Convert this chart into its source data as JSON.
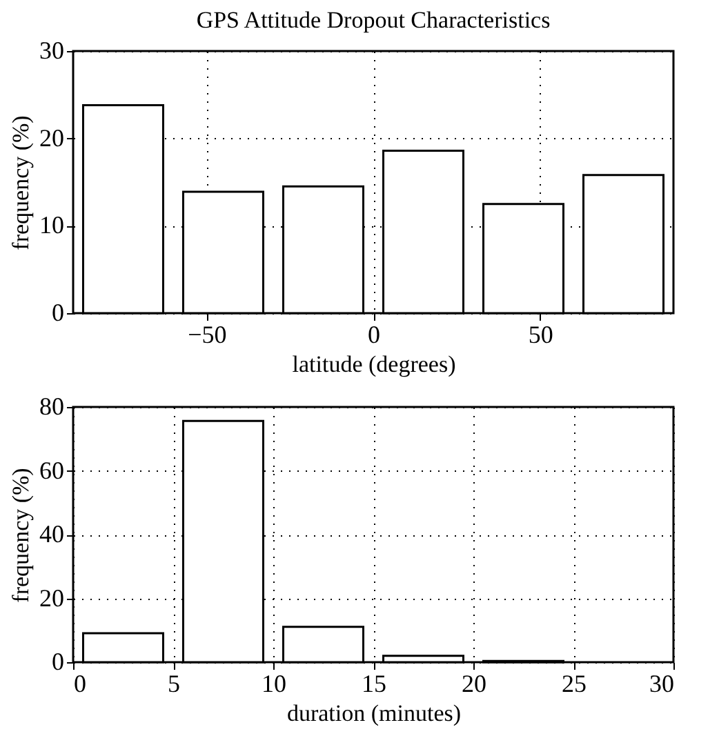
{
  "chart_data": [
    {
      "type": "histogram",
      "title": "GPS Attitude Dropout Characteristics",
      "xlabel": "latitude (degrees)",
      "ylabel": "frequency (%)",
      "bins": [
        -90,
        -60,
        -30,
        0,
        30,
        60,
        90
      ],
      "values": [
        23.8,
        13.9,
        14.5,
        18.6,
        12.5,
        15.8
      ],
      "color": "#ffffff",
      "xlim": [
        -90,
        90
      ],
      "xticks": [
        -50,
        0,
        50
      ],
      "ylim": [
        0,
        30
      ],
      "yticks": [
        0,
        10,
        20,
        30
      ],
      "grid": true
    },
    {
      "type": "histogram",
      "xlabel": "duration (minutes)",
      "ylabel": "frequency (%)",
      "bins": [
        0,
        5,
        10,
        15,
        20,
        25,
        30
      ],
      "values": [
        9.1,
        75.6,
        11.1,
        2.0,
        0.4,
        null
      ],
      "color": "#ffffff",
      "xlim": [
        0,
        30
      ],
      "xticks": [
        0,
        5,
        10,
        15,
        20,
        25,
        30
      ],
      "ylim": [
        0,
        80
      ],
      "yticks": [
        0,
        20,
        40,
        60,
        80
      ],
      "grid": true
    }
  ]
}
